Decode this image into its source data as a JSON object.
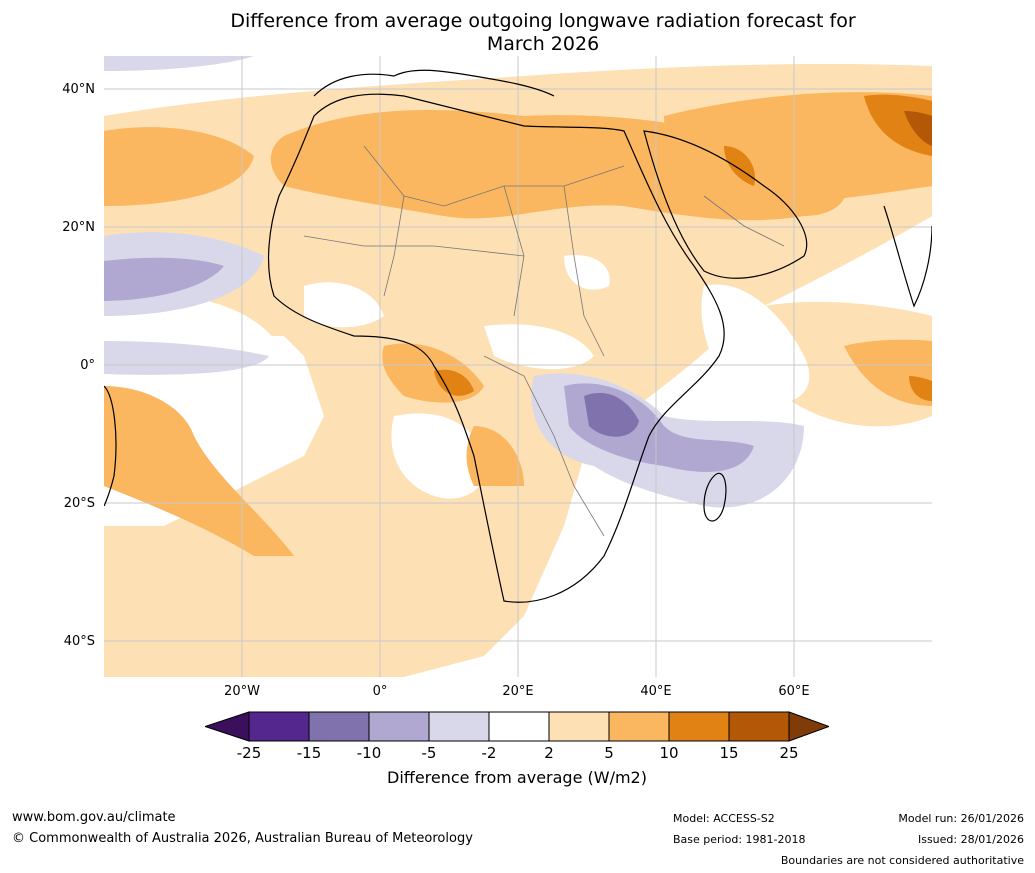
{
  "title": {
    "line1": "Difference from average outgoing longwave radiation forecast for",
    "line2": "March 2026"
  },
  "map": {
    "lat_labels": [
      "40°N",
      "20°N",
      "0°",
      "20°S",
      "40°S"
    ],
    "lon_labels": [
      "20°W",
      "0°",
      "20°E",
      "40°E",
      "60°E"
    ],
    "colors": {
      "c_m25": "#3a0f5c",
      "c_m15": "#54278f",
      "c_m10": "#8072ac",
      "c_m5": "#b0a8d0",
      "c_m2": "#d8d8ea",
      "c_0": "#ffffff",
      "c_2": "#fde0b4",
      "c_5": "#fbb660",
      "c_10": "#e08214",
      "c_15": "#b35806",
      "c_25": "#7f3b08"
    }
  },
  "colorbar": {
    "ticks": [
      "-25",
      "-15",
      "-10",
      "-5",
      "-2",
      "2",
      "5",
      "10",
      "15",
      "25"
    ],
    "label": "Difference from average (W/m2)"
  },
  "footer": {
    "website": "www.bom.gov.au/climate",
    "copyright": "© Commonwealth of Australia 2026, Australian Bureau of Meteorology",
    "model": "Model: ACCESS-S2",
    "base_period": "Base period: 1981-2018",
    "model_run": "Model run: 26/01/2026",
    "issued": "Issued: 28/01/2026",
    "disclaimer": "Boundaries are not considered authoritative"
  }
}
